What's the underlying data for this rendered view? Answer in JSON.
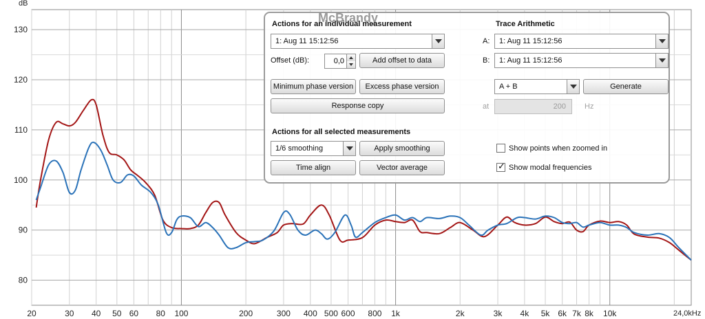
{
  "chart_data": {
    "type": "line",
    "y_unit_label": "dB",
    "x_unit_label": "24,0kHz",
    "x_scale": "log",
    "xlim": [
      20,
      24000
    ],
    "ylim": [
      75,
      134
    ],
    "grid": true,
    "y_ticks": [
      80,
      90,
      100,
      110,
      120,
      130
    ],
    "x_tick_labels": [
      {
        "f": 20,
        "label": "20"
      },
      {
        "f": 30,
        "label": "30"
      },
      {
        "f": 40,
        "label": "40"
      },
      {
        "f": 50,
        "label": "50"
      },
      {
        "f": 60,
        "label": "60"
      },
      {
        "f": 80,
        "label": "80"
      },
      {
        "f": 100,
        "label": "100"
      },
      {
        "f": 200,
        "label": "200"
      },
      {
        "f": 300,
        "label": "300"
      },
      {
        "f": 400,
        "label": "400"
      },
      {
        "f": 500,
        "label": "500"
      },
      {
        "f": 600,
        "label": "600"
      },
      {
        "f": 800,
        "label": "800"
      },
      {
        "f": 1000,
        "label": "1k"
      },
      {
        "f": 2000,
        "label": "2k"
      },
      {
        "f": 3000,
        "label": "3k"
      },
      {
        "f": 4000,
        "label": "4k"
      },
      {
        "f": 5000,
        "label": "5k"
      },
      {
        "f": 6000,
        "label": "6k"
      },
      {
        "f": 7000,
        "label": "7k"
      },
      {
        "f": 8000,
        "label": "8k"
      },
      {
        "f": 10000,
        "label": "10k"
      }
    ],
    "series": [
      {
        "color": "#a31515",
        "points": [
          [
            21,
            94.5
          ],
          [
            22,
            100
          ],
          [
            24,
            108
          ],
          [
            26,
            111.5
          ],
          [
            28,
            111.2
          ],
          [
            30,
            110.8
          ],
          [
            32,
            111.5
          ],
          [
            35,
            114
          ],
          [
            38,
            116
          ],
          [
            40,
            115
          ],
          [
            43,
            109
          ],
          [
            46,
            105.5
          ],
          [
            50,
            105
          ],
          [
            54,
            104
          ],
          [
            58,
            102
          ],
          [
            62,
            101
          ],
          [
            68,
            99.5
          ],
          [
            75,
            97
          ],
          [
            82,
            92
          ],
          [
            90,
            90.5
          ],
          [
            100,
            90.3
          ],
          [
            110,
            90.3
          ],
          [
            120,
            91
          ],
          [
            130,
            93.5
          ],
          [
            140,
            95.5
          ],
          [
            150,
            95.5
          ],
          [
            160,
            93
          ],
          [
            180,
            89.5
          ],
          [
            200,
            88
          ],
          [
            220,
            87.3
          ],
          [
            250,
            88.5
          ],
          [
            280,
            89.5
          ],
          [
            300,
            91
          ],
          [
            330,
            91.3
          ],
          [
            370,
            91.2
          ],
          [
            400,
            93
          ],
          [
            450,
            95
          ],
          [
            490,
            93
          ],
          [
            550,
            88
          ],
          [
            600,
            88
          ],
          [
            700,
            88.5
          ],
          [
            800,
            91
          ],
          [
            900,
            92
          ],
          [
            1000,
            91.7
          ],
          [
            1100,
            91.5
          ],
          [
            1200,
            92
          ],
          [
            1300,
            89.7
          ],
          [
            1400,
            89.5
          ],
          [
            1600,
            89.3
          ],
          [
            1800,
            90.5
          ],
          [
            2000,
            91.5
          ],
          [
            2300,
            90
          ],
          [
            2600,
            88.7
          ],
          [
            3000,
            91
          ],
          [
            3300,
            92.6
          ],
          [
            3600,
            91.5
          ],
          [
            4000,
            91
          ],
          [
            4500,
            91.3
          ],
          [
            5000,
            92.6
          ],
          [
            5500,
            91.7
          ],
          [
            6000,
            91.3
          ],
          [
            6500,
            91.6
          ],
          [
            7000,
            90
          ],
          [
            7500,
            89.7
          ],
          [
            8000,
            91
          ],
          [
            9000,
            91.8
          ],
          [
            10000,
            91.5
          ],
          [
            11000,
            91.7
          ],
          [
            12000,
            91
          ],
          [
            13000,
            89.2
          ],
          [
            15000,
            88.6
          ],
          [
            17000,
            88.4
          ],
          [
            19000,
            87.5
          ],
          [
            21000,
            86
          ],
          [
            24000,
            84
          ]
        ]
      },
      {
        "color": "#2a72b8",
        "points": [
          [
            21,
            96
          ],
          [
            22,
            98.5
          ],
          [
            24,
            103
          ],
          [
            26,
            103.8
          ],
          [
            28,
            101.5
          ],
          [
            30,
            97.5
          ],
          [
            32,
            98
          ],
          [
            34,
            102
          ],
          [
            37,
            106.5
          ],
          [
            39,
            107.5
          ],
          [
            42,
            106
          ],
          [
            45,
            103
          ],
          [
            48,
            100
          ],
          [
            52,
            99.5
          ],
          [
            56,
            101
          ],
          [
            60,
            100.8
          ],
          [
            65,
            99
          ],
          [
            72,
            97.5
          ],
          [
            78,
            95
          ],
          [
            85,
            89.5
          ],
          [
            90,
            89.5
          ],
          [
            95,
            92
          ],
          [
            100,
            92.8
          ],
          [
            110,
            92.5
          ],
          [
            120,
            90.7
          ],
          [
            130,
            91.5
          ],
          [
            140,
            90.5
          ],
          [
            150,
            89
          ],
          [
            165,
            86.5
          ],
          [
            180,
            86.5
          ],
          [
            200,
            87.5
          ],
          [
            220,
            87.7
          ],
          [
            240,
            88
          ],
          [
            270,
            89.8
          ],
          [
            300,
            93.5
          ],
          [
            320,
            93.2
          ],
          [
            350,
            90
          ],
          [
            380,
            89
          ],
          [
            420,
            90
          ],
          [
            450,
            89.3
          ],
          [
            480,
            88.2
          ],
          [
            520,
            89.5
          ],
          [
            580,
            93
          ],
          [
            620,
            91
          ],
          [
            650,
            88.6
          ],
          [
            700,
            89.5
          ],
          [
            800,
            91.5
          ],
          [
            900,
            92.5
          ],
          [
            1000,
            93
          ],
          [
            1100,
            92
          ],
          [
            1200,
            92.5
          ],
          [
            1300,
            91.7
          ],
          [
            1400,
            92.5
          ],
          [
            1600,
            92.3
          ],
          [
            1800,
            92.8
          ],
          [
            2000,
            92.5
          ],
          [
            2200,
            91
          ],
          [
            2500,
            89
          ],
          [
            2700,
            90
          ],
          [
            3000,
            91
          ],
          [
            3300,
            91.3
          ],
          [
            3700,
            92.5
          ],
          [
            4000,
            92.5
          ],
          [
            4500,
            92.2
          ],
          [
            5000,
            92.8
          ],
          [
            5500,
            92.5
          ],
          [
            6000,
            91.5
          ],
          [
            6500,
            91.3
          ],
          [
            7000,
            91.5
          ],
          [
            7500,
            90.6
          ],
          [
            8000,
            91
          ],
          [
            9000,
            91.5
          ],
          [
            10000,
            91
          ],
          [
            11000,
            91
          ],
          [
            12000,
            90.5
          ],
          [
            13000,
            89.5
          ],
          [
            15000,
            89
          ],
          [
            17000,
            89.3
          ],
          [
            19000,
            88.5
          ],
          [
            21000,
            86.5
          ],
          [
            24000,
            84
          ]
        ]
      }
    ]
  },
  "panel": {
    "watermark": "McBrandy",
    "individual": {
      "heading": "Actions for an individual measurement",
      "measurement_select": "1: Aug 11 15:12:56",
      "offset_label": "Offset (dB):",
      "offset_value": "0,0",
      "add_offset_button": "Add offset to data",
      "min_phase_button": "Minimum phase version",
      "excess_phase_button": "Excess phase version",
      "response_copy_button": "Response copy"
    },
    "trace": {
      "heading": "Trace Arithmetic",
      "a_label": "A:",
      "a_select": "1: Aug 11 15:12:56",
      "b_label": "B:",
      "b_select": "1: Aug 11 15:12:56",
      "op_select": "A + B",
      "generate_button": "Generate",
      "at_label": "at",
      "at_value": "200",
      "hz_label": "Hz"
    },
    "selected": {
      "heading": "Actions for all selected measurements",
      "smoothing_select": "1/6 smoothing",
      "apply_smoothing_button": "Apply smoothing",
      "time_align_button": "Time align",
      "vector_average_button": "Vector average"
    },
    "options": {
      "show_points_label": "Show points when zoomed in",
      "show_points_checked": false,
      "show_modal_label": "Show modal frequencies",
      "show_modal_checked": true
    }
  }
}
